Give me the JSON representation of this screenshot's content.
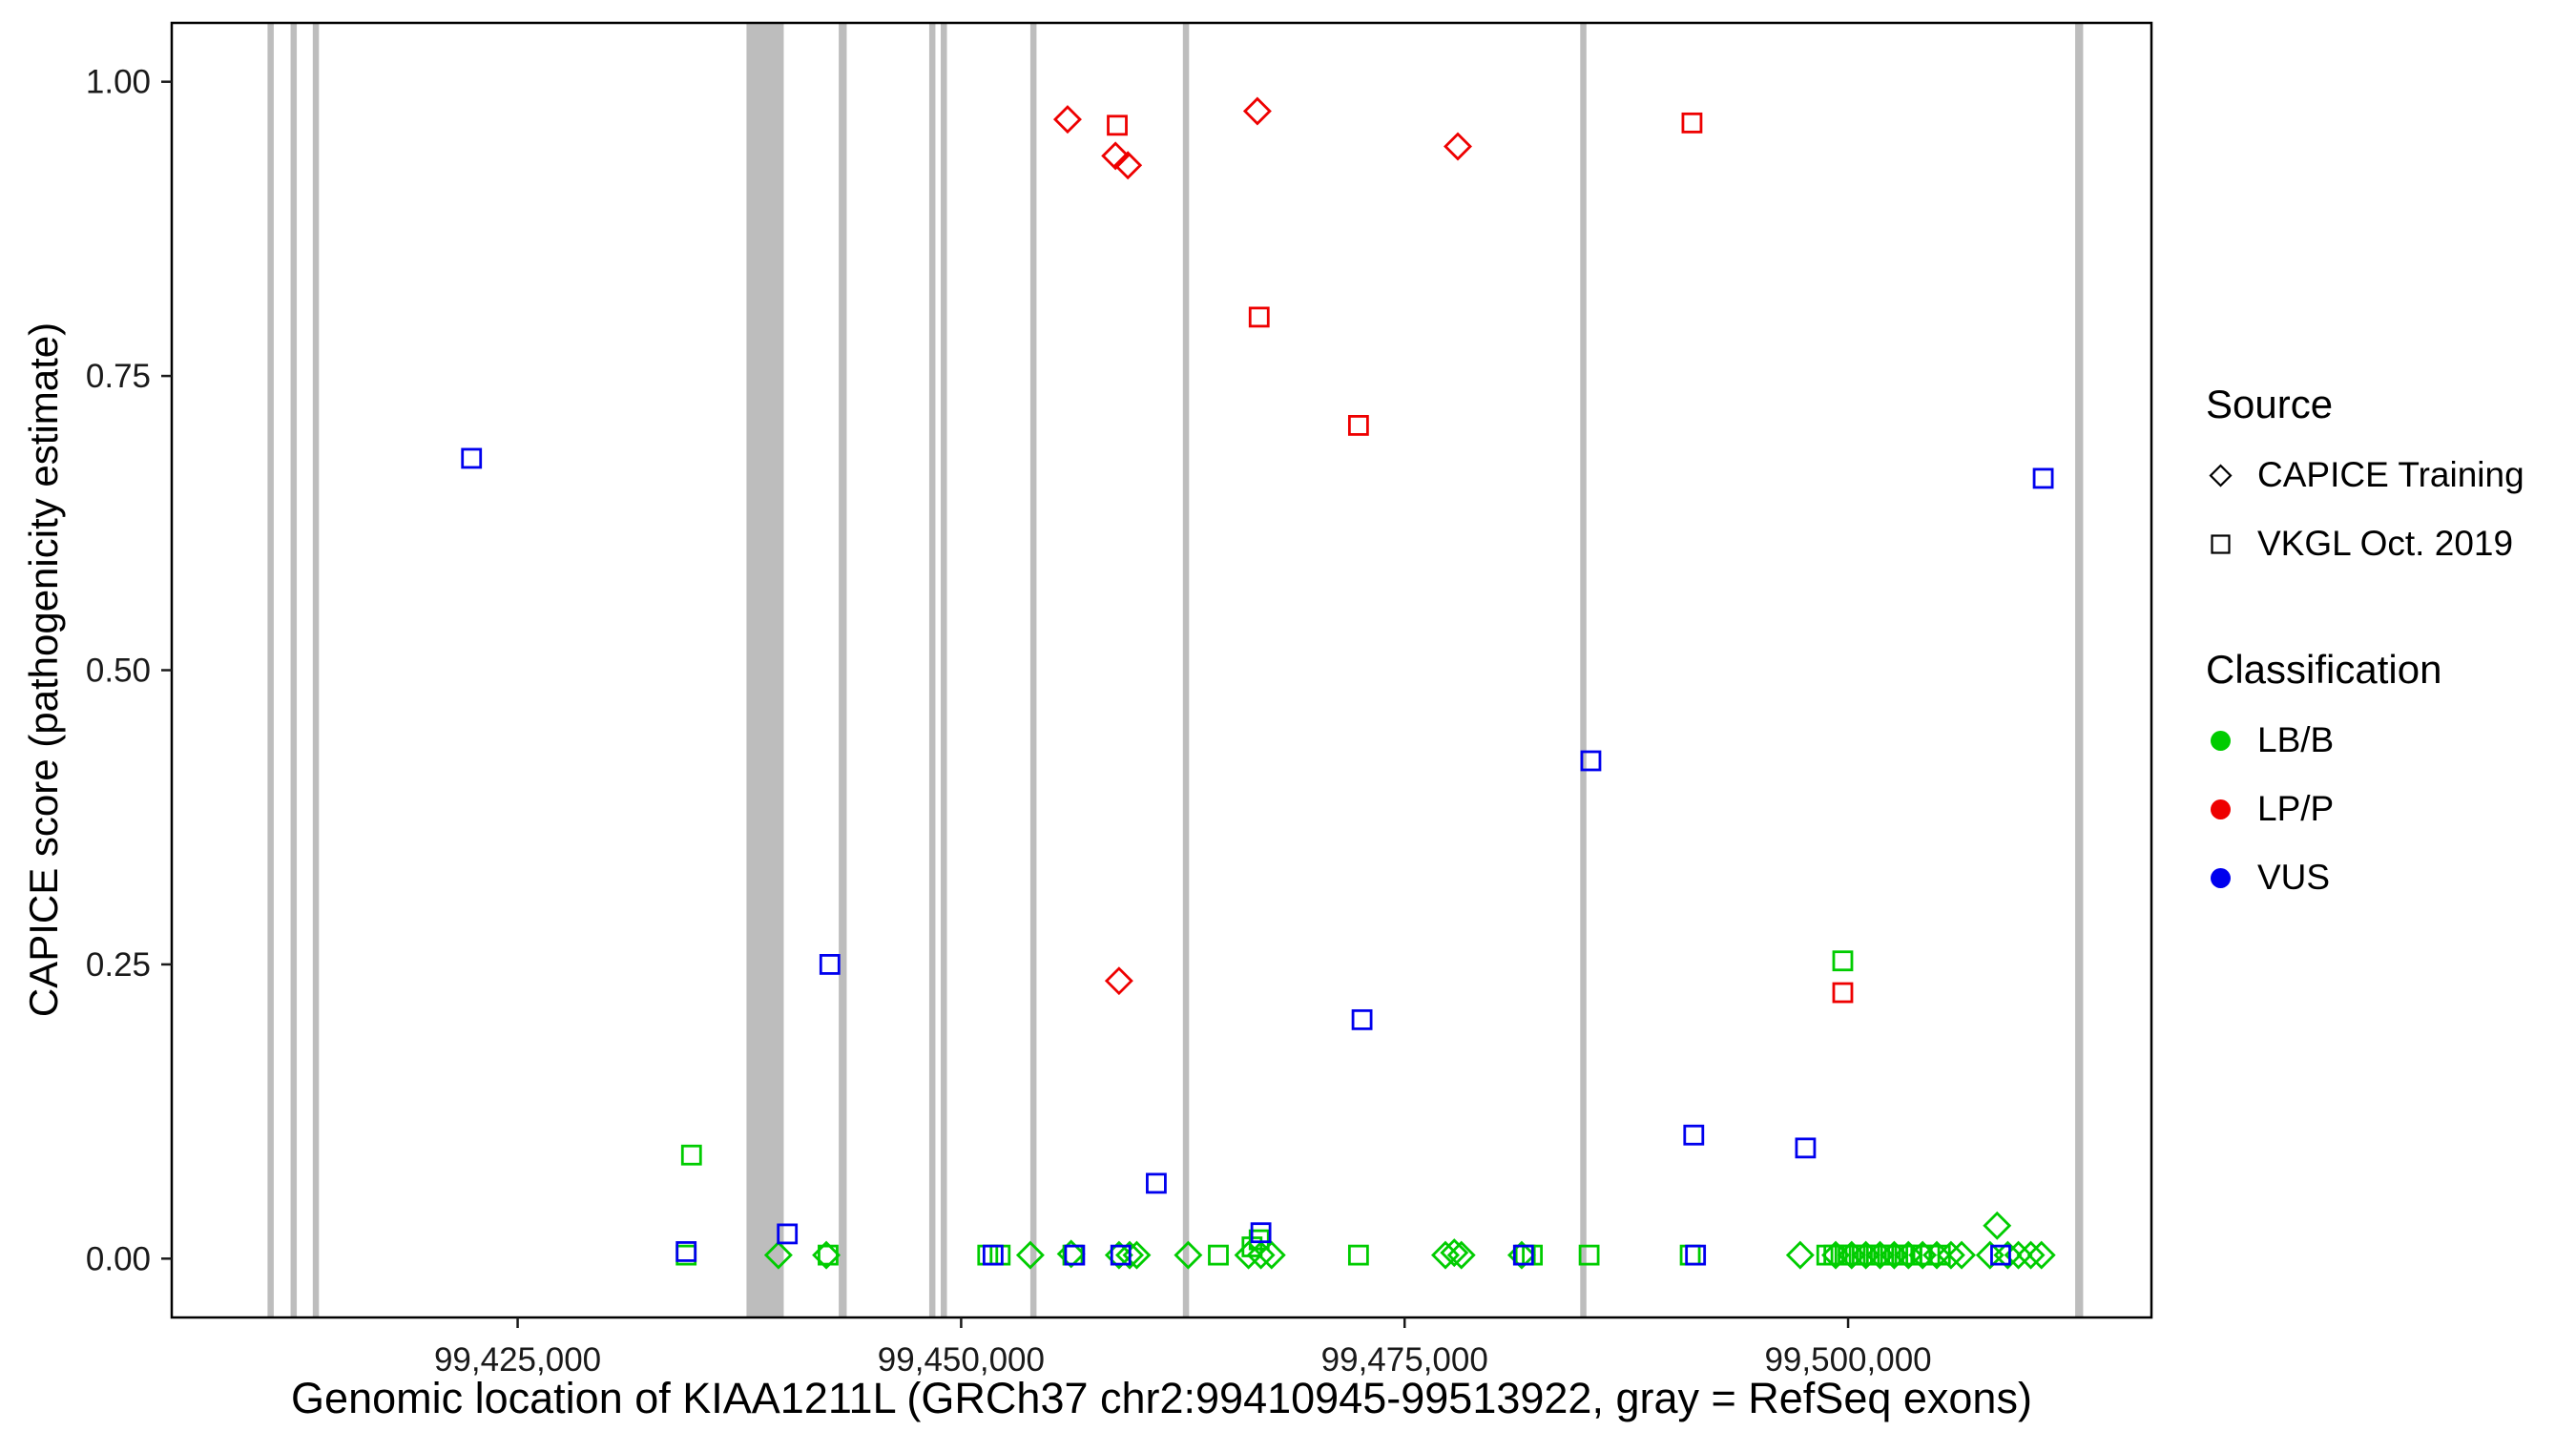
{
  "chart_data": {
    "type": "scatter",
    "title": "",
    "xlabel": "Genomic location of KIAA1211L (GRCh37 chr2:99410945-99513922, gray = RefSeq exons)",
    "ylabel": "CAPICE score (pathogenicity estimate)",
    "x_domain": [
      99405500,
      99517100
    ],
    "y_domain": [
      -0.05,
      1.05
    ],
    "grid": "off",
    "panel_border_color": "#000000",
    "exon_color": "#bdbdbd",
    "x_ticks": [
      {
        "value": 99425000,
        "label": "99,425,000"
      },
      {
        "value": 99450000,
        "label": "99,450,000"
      },
      {
        "value": 99475000,
        "label": "99,475,000"
      },
      {
        "value": 99500000,
        "label": "99,500,000"
      }
    ],
    "y_ticks": [
      {
        "value": 0.0,
        "label": "0.00"
      },
      {
        "value": 0.25,
        "label": "0.25"
      },
      {
        "value": 0.5,
        "label": "0.50"
      },
      {
        "value": 0.75,
        "label": "0.75"
      },
      {
        "value": 1.0,
        "label": "1.00"
      }
    ],
    "exons": [
      [
        99410900,
        99411250
      ],
      [
        99412200,
        99412550
      ],
      [
        99413450,
        99413800
      ],
      [
        99437900,
        99440000
      ],
      [
        99443100,
        99443550
      ],
      [
        99448200,
        99448550
      ],
      [
        99448850,
        99449200
      ],
      [
        99453900,
        99454250
      ],
      [
        99462500,
        99462850
      ],
      [
        99484900,
        99485250
      ],
      [
        99512800,
        99513250
      ]
    ],
    "series": [
      {
        "name": "CAPICE Training / LP/P",
        "source": "CAPICE Training",
        "classification": "LP/P",
        "shape": "diamond",
        "color": "#ee0000",
        "points": [
          [
            99456000,
            0.968
          ],
          [
            99458700,
            0.937
          ],
          [
            99459400,
            0.929
          ],
          [
            99458900,
            0.236
          ],
          [
            99466700,
            0.975
          ],
          [
            99478000,
            0.945
          ]
        ]
      },
      {
        "name": "CAPICE Training / LB/B",
        "source": "CAPICE Training",
        "classification": "LB/B",
        "shape": "diamond",
        "color": "#00cc00",
        "points": [
          [
            99439700,
            0.003
          ],
          [
            99442400,
            0.003
          ],
          [
            99453900,
            0.003
          ],
          [
            99456200,
            0.004
          ],
          [
            99458900,
            0.003
          ],
          [
            99459500,
            0.003
          ],
          [
            99459900,
            0.003
          ],
          [
            99462800,
            0.003
          ],
          [
            99466200,
            0.003
          ],
          [
            99466900,
            0.003
          ],
          [
            99467500,
            0.003
          ],
          [
            99477300,
            0.003
          ],
          [
            99477800,
            0.005
          ],
          [
            99478200,
            0.003
          ],
          [
            99481600,
            0.003
          ],
          [
            99497300,
            0.003
          ],
          [
            99499300,
            0.003
          ],
          [
            99500200,
            0.003
          ],
          [
            99501000,
            0.003
          ],
          [
            99501800,
            0.003
          ],
          [
            99502600,
            0.003
          ],
          [
            99503400,
            0.003
          ],
          [
            99504200,
            0.003
          ],
          [
            99505000,
            0.003
          ],
          [
            99505800,
            0.003
          ],
          [
            99506400,
            0.003
          ],
          [
            99508000,
            0.003
          ],
          [
            99508400,
            0.028
          ],
          [
            99509000,
            0.003
          ],
          [
            99509600,
            0.003
          ],
          [
            99510300,
            0.003
          ],
          [
            99510900,
            0.003
          ]
        ]
      },
      {
        "name": "VKGL Oct. 2019 / LP/P",
        "source": "VKGL Oct. 2019",
        "classification": "LP/P",
        "shape": "square",
        "color": "#ee0000",
        "points": [
          [
            99458800,
            0.963
          ],
          [
            99466800,
            0.8
          ],
          [
            99472400,
            0.708
          ],
          [
            99491200,
            0.965
          ],
          [
            99499700,
            0.226
          ]
        ]
      },
      {
        "name": "VKGL Oct. 2019 / LB/B",
        "source": "VKGL Oct. 2019",
        "classification": "LB/B",
        "shape": "square",
        "color": "#00cc00",
        "points": [
          [
            99434800,
            0.088
          ],
          [
            99499700,
            0.253
          ],
          [
            99434500,
            0.003
          ],
          [
            99442500,
            0.003
          ],
          [
            99451500,
            0.003
          ],
          [
            99452200,
            0.003
          ],
          [
            99456300,
            0.003
          ],
          [
            99464500,
            0.003
          ],
          [
            99466400,
            0.01
          ],
          [
            99466800,
            0.016
          ],
          [
            99472400,
            0.003
          ],
          [
            99481800,
            0.003
          ],
          [
            99482200,
            0.003
          ],
          [
            99485400,
            0.003
          ],
          [
            99491100,
            0.003
          ],
          [
            99498800,
            0.003
          ],
          [
            99499200,
            0.003
          ],
          [
            99499600,
            0.003
          ],
          [
            99500000,
            0.003
          ],
          [
            99500400,
            0.003
          ],
          [
            99500800,
            0.003
          ],
          [
            99501200,
            0.003
          ],
          [
            99501600,
            0.003
          ],
          [
            99502000,
            0.003
          ],
          [
            99502400,
            0.003
          ],
          [
            99502800,
            0.003
          ],
          [
            99503200,
            0.003
          ],
          [
            99503600,
            0.003
          ],
          [
            99504100,
            0.003
          ],
          [
            99504600,
            0.003
          ],
          [
            99505200,
            0.003
          ]
        ]
      },
      {
        "name": "VKGL Oct. 2019 / VUS",
        "source": "VKGL Oct. 2019",
        "classification": "VUS",
        "shape": "square",
        "color": "#0000ee",
        "points": [
          [
            99422400,
            0.68
          ],
          [
            99440200,
            0.021
          ],
          [
            99442600,
            0.25
          ],
          [
            99461000,
            0.064
          ],
          [
            99466900,
            0.022
          ],
          [
            99472600,
            0.203
          ],
          [
            99485500,
            0.423
          ],
          [
            99491300,
            0.105
          ],
          [
            99497600,
            0.094
          ],
          [
            99511000,
            0.663
          ],
          [
            99434500,
            0.006
          ],
          [
            99451800,
            0.003
          ],
          [
            99456400,
            0.003
          ],
          [
            99459000,
            0.003
          ],
          [
            99481700,
            0.003
          ],
          [
            99491400,
            0.003
          ],
          [
            99508600,
            0.003
          ]
        ]
      }
    ],
    "legend": {
      "source_title": "Source",
      "source_items": [
        {
          "label": "CAPICE Training",
          "shape": "diamond"
        },
        {
          "label": "VKGL Oct. 2019",
          "shape": "square"
        }
      ],
      "classification_title": "Classification",
      "classification_items": [
        {
          "label": "LB/B",
          "color": "#00cc00"
        },
        {
          "label": "LP/P",
          "color": "#ee0000"
        },
        {
          "label": "VUS",
          "color": "#0000ee"
        }
      ]
    }
  }
}
